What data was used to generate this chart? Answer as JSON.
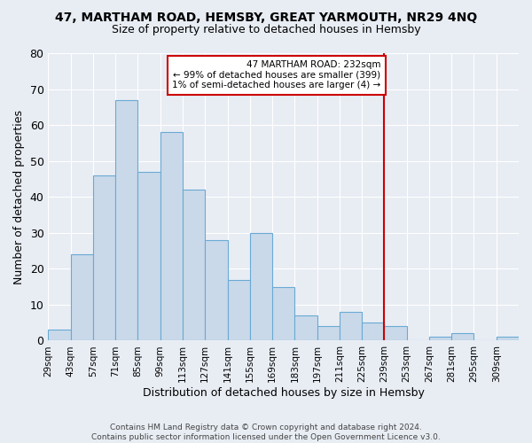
{
  "title1": "47, MARTHAM ROAD, HEMSBY, GREAT YARMOUTH, NR29 4NQ",
  "title2": "Size of property relative to detached houses in Hemsby",
  "xlabel": "Distribution of detached houses by size in Hemsby",
  "ylabel": "Number of detached properties",
  "bin_labels": [
    "29sqm",
    "43sqm",
    "57sqm",
    "71sqm",
    "85sqm",
    "99sqm",
    "113sqm",
    "127sqm",
    "141sqm",
    "155sqm",
    "169sqm",
    "183sqm",
    "197sqm",
    "211sqm",
    "225sqm",
    "239sqm",
    "253sqm",
    "267sqm",
    "281sqm",
    "295sqm",
    "309sqm"
  ],
  "bar_heights": [
    3,
    24,
    46,
    67,
    47,
    58,
    42,
    28,
    17,
    30,
    15,
    7,
    4,
    8,
    5,
    4,
    0,
    1,
    2,
    0,
    1
  ],
  "bar_color": "#c9d9ea",
  "bar_edge_color": "#6aaad4",
  "vline_color": "#cc0000",
  "annotation_text": "47 MARTHAM ROAD: 232sqm\n← 99% of detached houses are smaller (399)\n1% of semi-detached houses are larger (4) →",
  "annotation_box_edge_color": "#cc0000",
  "annotation_box_face_color": "#ffffff",
  "bg_color": "#e8edf4",
  "footer_text": "Contains HM Land Registry data © Crown copyright and database right 2024.\nContains public sector information licensed under the Open Government Licence v3.0.",
  "ylim": [
    0,
    80
  ],
  "yticks": [
    0,
    10,
    20,
    30,
    40,
    50,
    60,
    70,
    80
  ],
  "grid_color": "#ffffff",
  "title1_fontsize": 10,
  "title2_fontsize": 9
}
